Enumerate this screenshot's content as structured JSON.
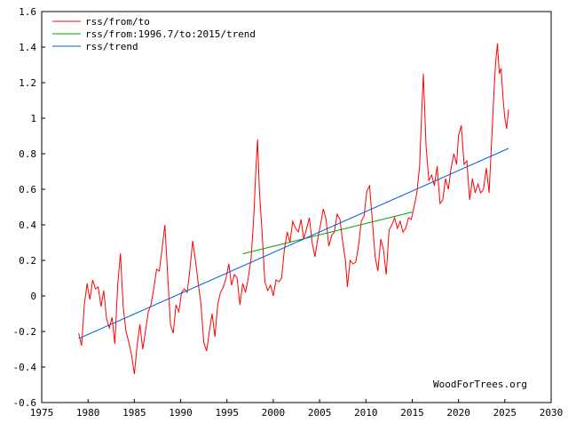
{
  "chart_data": {
    "type": "line",
    "xlim": [
      1975,
      2030
    ],
    "ylim": [
      -0.6,
      1.6
    ],
    "x_ticks": [
      1975,
      1980,
      1985,
      1990,
      1995,
      2000,
      2005,
      2010,
      2015,
      2020,
      2025,
      2030
    ],
    "y_ticks": [
      -0.6,
      -0.4,
      -0.2,
      0,
      0.2,
      0.4,
      0.6,
      0.8,
      1,
      1.2,
      1.4,
      1.6
    ],
    "y_tick_labels": [
      "-0.6",
      "-0.4",
      "-0.2",
      "0",
      "0.2",
      "0.4",
      "0.6",
      "0.8",
      "1",
      "1.2",
      "1.4",
      "1.6"
    ],
    "grid": false,
    "legend_position": "top-left",
    "watermark": "WoodForTrees.org",
    "series": [
      {
        "name": "rss/from/to",
        "color": "#ff0000",
        "points": [
          [
            1979.0,
            -0.21
          ],
          [
            1979.3,
            -0.28
          ],
          [
            1979.6,
            -0.05
          ],
          [
            1979.9,
            0.07
          ],
          [
            1980.2,
            -0.02
          ],
          [
            1980.5,
            0.09
          ],
          [
            1980.8,
            0.04
          ],
          [
            1981.1,
            0.05
          ],
          [
            1981.4,
            -0.06
          ],
          [
            1981.7,
            0.03
          ],
          [
            1982.0,
            -0.13
          ],
          [
            1982.3,
            -0.18
          ],
          [
            1982.6,
            -0.12
          ],
          [
            1982.9,
            -0.27
          ],
          [
            1983.2,
            0.06
          ],
          [
            1983.5,
            0.24
          ],
          [
            1983.8,
            -0.06
          ],
          [
            1984.1,
            -0.2
          ],
          [
            1984.4,
            -0.26
          ],
          [
            1984.7,
            -0.33
          ],
          [
            1985.0,
            -0.44
          ],
          [
            1985.3,
            -0.28
          ],
          [
            1985.6,
            -0.16
          ],
          [
            1985.9,
            -0.3
          ],
          [
            1986.2,
            -0.2
          ],
          [
            1986.5,
            -0.09
          ],
          [
            1986.8,
            -0.05
          ],
          [
            1987.1,
            0.04
          ],
          [
            1987.4,
            0.15
          ],
          [
            1987.7,
            0.14
          ],
          [
            1988.0,
            0.27
          ],
          [
            1988.3,
            0.4
          ],
          [
            1988.6,
            0.12
          ],
          [
            1988.9,
            -0.16
          ],
          [
            1989.2,
            -0.21
          ],
          [
            1989.5,
            -0.05
          ],
          [
            1989.8,
            -0.09
          ],
          [
            1990.1,
            0.02
          ],
          [
            1990.4,
            0.04
          ],
          [
            1990.7,
            0.02
          ],
          [
            1991.0,
            0.15
          ],
          [
            1991.3,
            0.31
          ],
          [
            1991.6,
            0.2
          ],
          [
            1991.9,
            0.07
          ],
          [
            1992.2,
            -0.05
          ],
          [
            1992.5,
            -0.26
          ],
          [
            1992.8,
            -0.31
          ],
          [
            1993.1,
            -0.2
          ],
          [
            1993.4,
            -0.1
          ],
          [
            1993.7,
            -0.23
          ],
          [
            1994.0,
            -0.05
          ],
          [
            1994.3,
            0.02
          ],
          [
            1994.6,
            0.05
          ],
          [
            1994.9,
            0.1
          ],
          [
            1995.2,
            0.18
          ],
          [
            1995.5,
            0.06
          ],
          [
            1995.8,
            0.12
          ],
          [
            1996.1,
            0.1
          ],
          [
            1996.4,
            -0.05
          ],
          [
            1996.7,
            0.07
          ],
          [
            1997.0,
            0.02
          ],
          [
            1997.3,
            0.1
          ],
          [
            1997.6,
            0.21
          ],
          [
            1997.9,
            0.45
          ],
          [
            1998.1,
            0.69
          ],
          [
            1998.3,
            0.88
          ],
          [
            1998.5,
            0.59
          ],
          [
            1998.8,
            0.35
          ],
          [
            1999.1,
            0.08
          ],
          [
            1999.4,
            0.03
          ],
          [
            1999.7,
            0.06
          ],
          [
            2000.0,
            0.0
          ],
          [
            2000.3,
            0.09
          ],
          [
            2000.6,
            0.08
          ],
          [
            2000.9,
            0.1
          ],
          [
            2001.2,
            0.26
          ],
          [
            2001.5,
            0.36
          ],
          [
            2001.8,
            0.3
          ],
          [
            2002.1,
            0.42
          ],
          [
            2002.4,
            0.38
          ],
          [
            2002.7,
            0.36
          ],
          [
            2003.0,
            0.43
          ],
          [
            2003.3,
            0.32
          ],
          [
            2003.6,
            0.38
          ],
          [
            2003.9,
            0.44
          ],
          [
            2004.2,
            0.3
          ],
          [
            2004.5,
            0.22
          ],
          [
            2004.8,
            0.32
          ],
          [
            2005.1,
            0.4
          ],
          [
            2005.4,
            0.49
          ],
          [
            2005.7,
            0.43
          ],
          [
            2006.0,
            0.28
          ],
          [
            2006.3,
            0.34
          ],
          [
            2006.6,
            0.36
          ],
          [
            2006.9,
            0.46
          ],
          [
            2007.2,
            0.43
          ],
          [
            2007.5,
            0.3
          ],
          [
            2007.8,
            0.2
          ],
          [
            2008.0,
            0.05
          ],
          [
            2008.3,
            0.2
          ],
          [
            2008.6,
            0.18
          ],
          [
            2008.9,
            0.19
          ],
          [
            2009.2,
            0.28
          ],
          [
            2009.5,
            0.42
          ],
          [
            2009.8,
            0.45
          ],
          [
            2010.1,
            0.59
          ],
          [
            2010.4,
            0.62
          ],
          [
            2010.7,
            0.42
          ],
          [
            2011.0,
            0.22
          ],
          [
            2011.3,
            0.14
          ],
          [
            2011.6,
            0.32
          ],
          [
            2011.9,
            0.26
          ],
          [
            2012.2,
            0.12
          ],
          [
            2012.5,
            0.37
          ],
          [
            2012.8,
            0.4
          ],
          [
            2013.1,
            0.44
          ],
          [
            2013.4,
            0.38
          ],
          [
            2013.7,
            0.42
          ],
          [
            2014.0,
            0.36
          ],
          [
            2014.3,
            0.38
          ],
          [
            2014.6,
            0.44
          ],
          [
            2014.9,
            0.43
          ],
          [
            2015.2,
            0.5
          ],
          [
            2015.5,
            0.58
          ],
          [
            2015.8,
            0.73
          ],
          [
            2016.0,
            1.0
          ],
          [
            2016.2,
            1.25
          ],
          [
            2016.5,
            0.84
          ],
          [
            2016.8,
            0.65
          ],
          [
            2017.1,
            0.68
          ],
          [
            2017.4,
            0.62
          ],
          [
            2017.7,
            0.73
          ],
          [
            2018.0,
            0.52
          ],
          [
            2018.3,
            0.54
          ],
          [
            2018.6,
            0.66
          ],
          [
            2018.9,
            0.6
          ],
          [
            2019.2,
            0.72
          ],
          [
            2019.5,
            0.8
          ],
          [
            2019.8,
            0.74
          ],
          [
            2020.0,
            0.9
          ],
          [
            2020.3,
            0.96
          ],
          [
            2020.6,
            0.74
          ],
          [
            2020.9,
            0.76
          ],
          [
            2021.2,
            0.54
          ],
          [
            2021.5,
            0.66
          ],
          [
            2021.8,
            0.58
          ],
          [
            2022.1,
            0.63
          ],
          [
            2022.4,
            0.58
          ],
          [
            2022.7,
            0.6
          ],
          [
            2023.0,
            0.72
          ],
          [
            2023.3,
            0.58
          ],
          [
            2023.6,
            0.9
          ],
          [
            2023.8,
            1.12
          ],
          [
            2024.0,
            1.31
          ],
          [
            2024.2,
            1.42
          ],
          [
            2024.4,
            1.25
          ],
          [
            2024.6,
            1.28
          ],
          [
            2024.8,
            1.12
          ],
          [
            2025.0,
            1.0
          ],
          [
            2025.2,
            0.94
          ],
          [
            2025.4,
            1.05
          ]
        ]
      },
      {
        "name": "rss/from:1996.7/to:2015/trend",
        "color": "#00a000",
        "points": [
          [
            1996.7,
            0.237
          ],
          [
            2015.0,
            0.472
          ]
        ]
      },
      {
        "name": "rss/trend",
        "color": "#0060e0",
        "points": [
          [
            1979.0,
            -0.24
          ],
          [
            2025.4,
            0.83
          ]
        ]
      }
    ]
  }
}
